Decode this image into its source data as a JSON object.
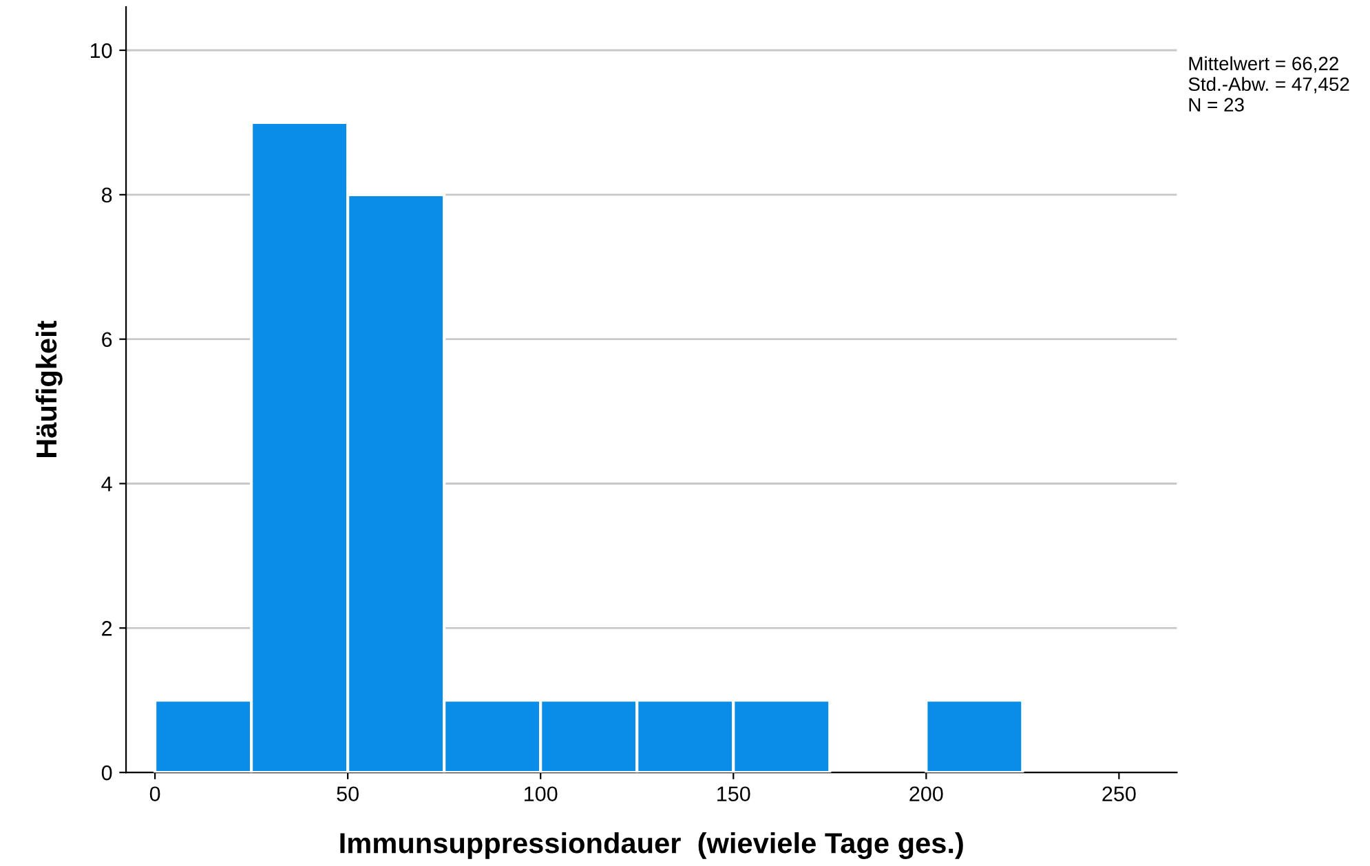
{
  "chart_data": {
    "type": "histogram",
    "xlabel": "Immunsuppressiondauer  (wieviele Tage ges.)",
    "ylabel": "Häufigkeit",
    "bins": [
      0,
      25,
      50,
      75,
      100,
      125,
      150,
      175,
      200,
      225
    ],
    "values": [
      1,
      9,
      8,
      1,
      1,
      1,
      1,
      0,
      1
    ],
    "color": "#0a8ce9",
    "xlim": [
      -7.5,
      265
    ],
    "xticks": [
      0,
      50,
      100,
      150,
      200,
      250
    ],
    "ylim": [
      0,
      10.6
    ],
    "yticks": [
      0,
      2,
      4,
      6,
      8,
      10
    ],
    "grid": "y",
    "annotations": [
      "Mittelwert = 66,22\nStd.-Abw. = 47,452\nN = 23"
    ]
  }
}
